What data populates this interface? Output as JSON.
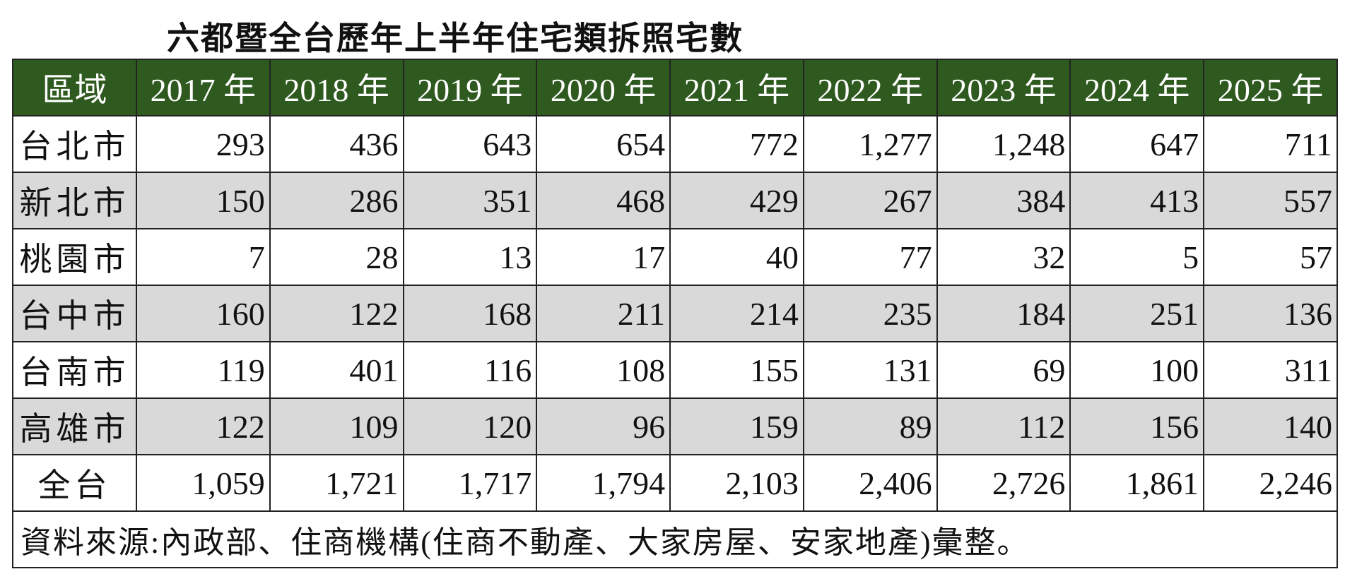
{
  "header": {
    "title": "六都暨全台歷年上半年住宅類拆照宅數"
  },
  "table": {
    "columns": [
      "區域",
      "2017 年",
      "2018 年",
      "2019 年",
      "2020 年",
      "2021 年",
      "2022 年",
      "2023 年",
      "2024 年",
      "2025 年"
    ],
    "rows": [
      [
        "台北市",
        "293",
        "436",
        "643",
        "654",
        "772",
        "1,277",
        "1,248",
        "647",
        "711"
      ],
      [
        "新北市",
        "150",
        "286",
        "351",
        "468",
        "429",
        "267",
        "384",
        "413",
        "557"
      ],
      [
        "桃園市",
        "7",
        "28",
        "13",
        "17",
        "40",
        "77",
        "32",
        "5",
        "57"
      ],
      [
        "台中市",
        "160",
        "122",
        "168",
        "211",
        "214",
        "235",
        "184",
        "251",
        "136"
      ],
      [
        "台南市",
        "119",
        "401",
        "116",
        "108",
        "155",
        "131",
        "69",
        "100",
        "311"
      ],
      [
        "高雄市",
        "122",
        "109",
        "120",
        "96",
        "159",
        "89",
        "112",
        "156",
        "140"
      ],
      [
        "全台",
        "1,059",
        "1,721",
        "1,717",
        "1,794",
        "2,103",
        "2,406",
        "2,726",
        "1,861",
        "2,246"
      ]
    ],
    "footnote": "資料來源:內政部、住商機構(住商不動產、大家房屋、安家地產)彙整。"
  }
}
